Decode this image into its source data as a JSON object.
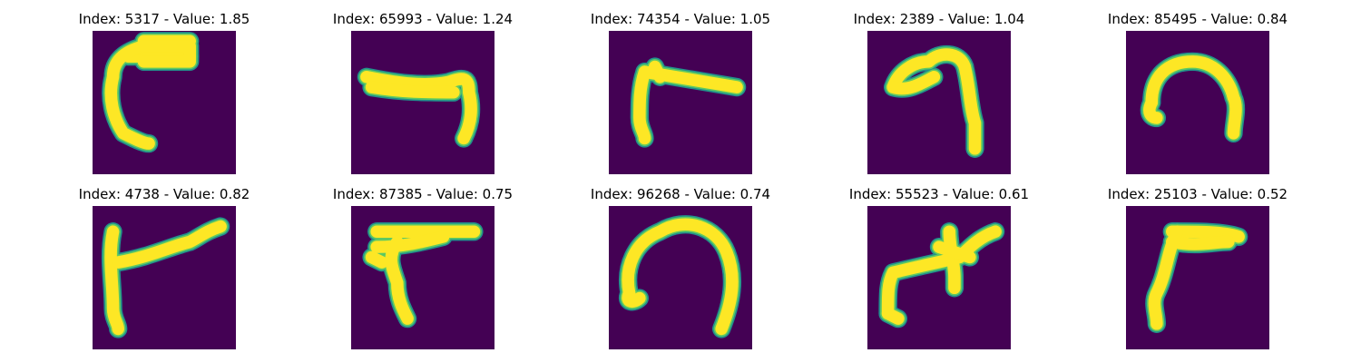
{
  "colors": {
    "background": "#440154",
    "stroke_edge": "#21918c",
    "stroke_mid": "#5ec962",
    "stroke_core": "#fde725"
  },
  "panels": [
    {
      "title": "Index: 5317 - Value: 1.85",
      "glyph": "hook-left-down"
    },
    {
      "title": "Index: 65993 - Value: 1.24",
      "glyph": "bar-hook-right-down"
    },
    {
      "title": "Index: 74354 - Value: 1.05",
      "glyph": "bar-stem-left-down"
    },
    {
      "title": "Index: 2389 - Value: 1.04",
      "glyph": "arch-right-descending"
    },
    {
      "title": "Index: 85495 - Value: 0.84",
      "glyph": "arch"
    },
    {
      "title": "Index: 4738 - Value: 0.82",
      "glyph": "corner-stem-rising-bar"
    },
    {
      "title": "Index: 87385 - Value: 0.75",
      "glyph": "bar-curved-stem"
    },
    {
      "title": "Index: 96268 - Value: 0.74",
      "glyph": "wide-arch"
    },
    {
      "title": "Index: 55523 - Value: 0.61",
      "glyph": "branching-stroke"
    },
    {
      "title": "Index: 25103 - Value: 0.52",
      "glyph": "bar-curved-stem-left"
    }
  ]
}
